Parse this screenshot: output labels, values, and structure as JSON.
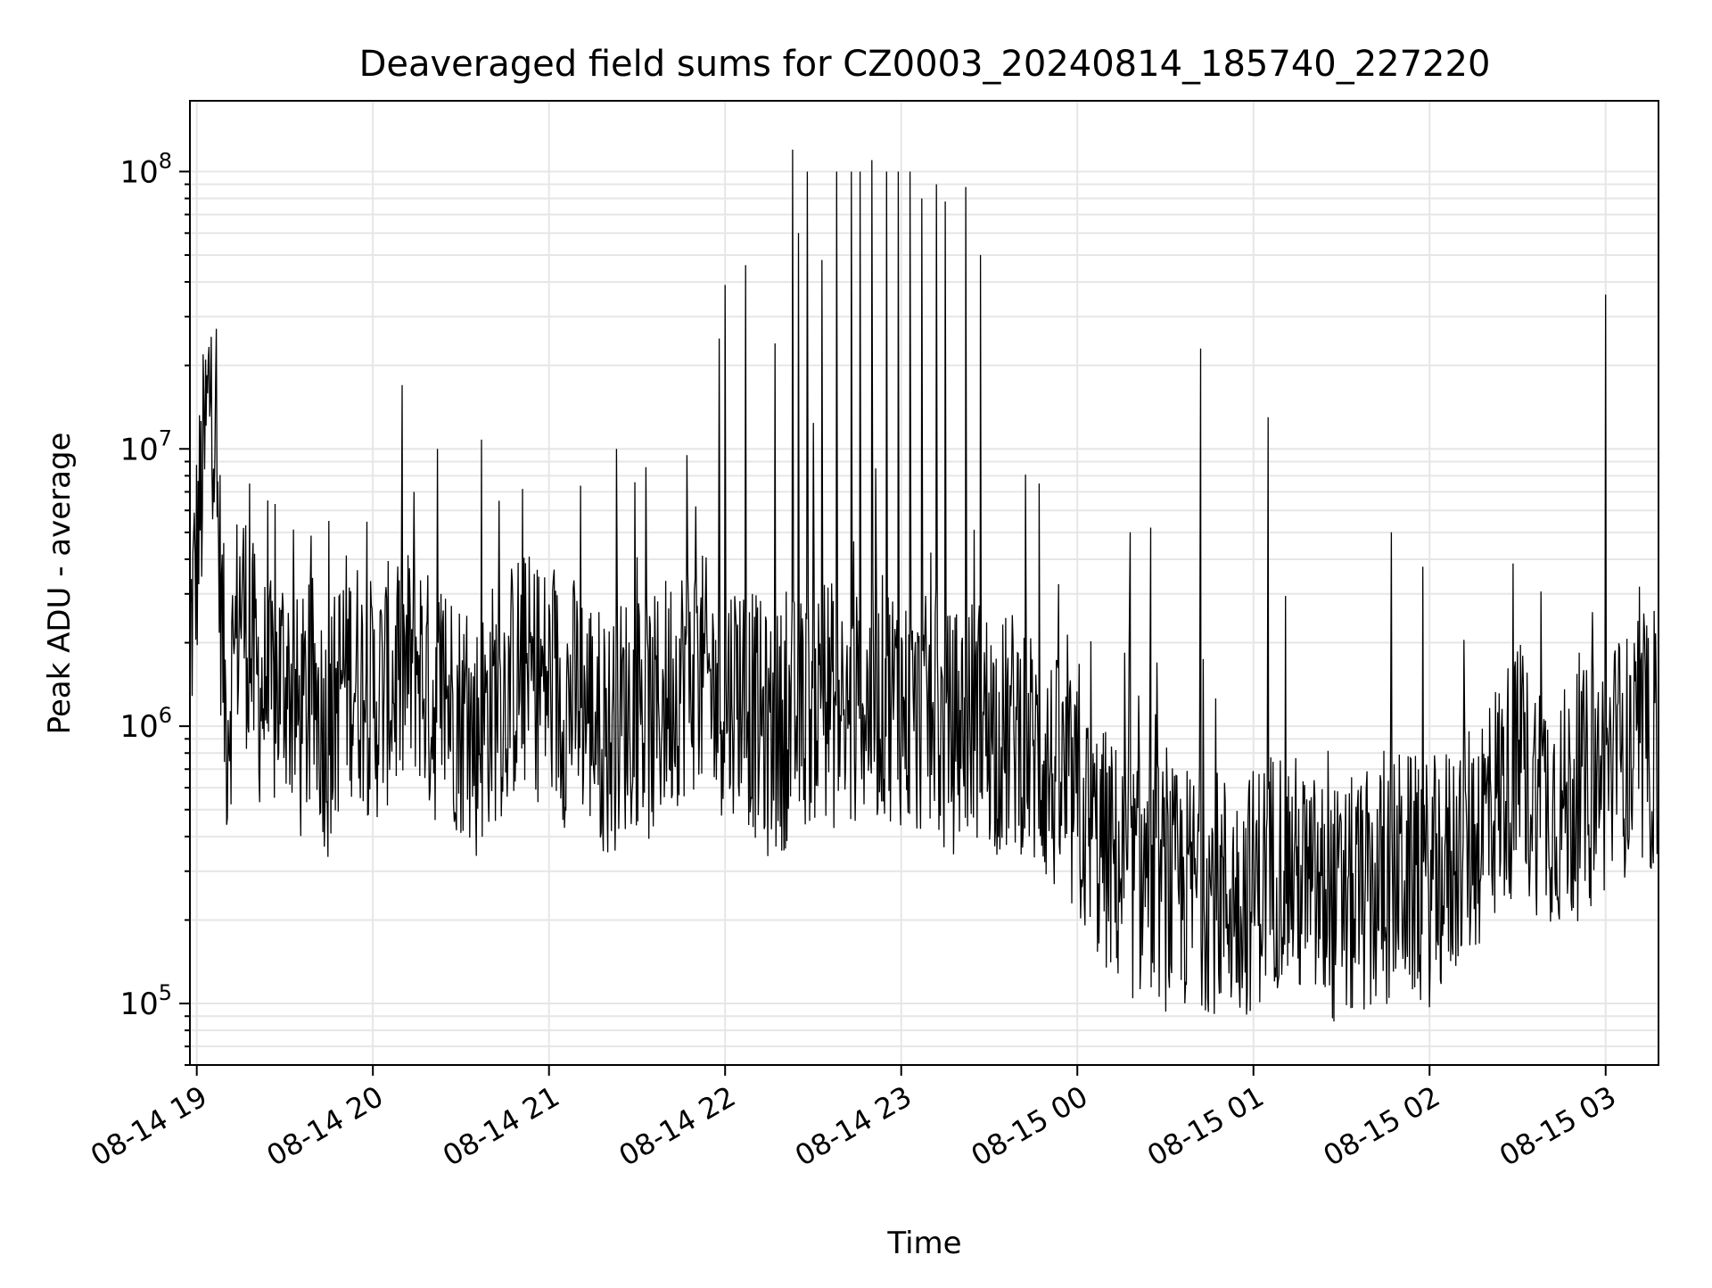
{
  "chart_data": {
    "type": "line",
    "title": "Deaveraged field sums for CZ0003_20240814_185740_227220",
    "xlabel": "Time",
    "ylabel": "Peak ADU - average",
    "yscale": "log",
    "ylim": [
      60000,
      180000000
    ],
    "xlim": [
      "2024-08-14 18:57:40",
      "2024-08-15 03:18:00"
    ],
    "x_ticks": [
      {
        "value": "2024-08-14 19:00",
        "label": "08-14 19"
      },
      {
        "value": "2024-08-14 20:00",
        "label": "08-14 20"
      },
      {
        "value": "2024-08-14 21:00",
        "label": "08-14 21"
      },
      {
        "value": "2024-08-14 22:00",
        "label": "08-14 22"
      },
      {
        "value": "2024-08-14 23:00",
        "label": "08-14 23"
      },
      {
        "value": "2024-08-15 00:00",
        "label": "08-15 00"
      },
      {
        "value": "2024-08-15 01:00",
        "label": "08-15 01"
      },
      {
        "value": "2024-08-15 02:00",
        "label": "08-15 02"
      },
      {
        "value": "2024-08-15 03:00",
        "label": "08-15 03"
      }
    ],
    "y_ticks": [
      {
        "value": 100000,
        "base": "10",
        "exp": "5"
      },
      {
        "value": 1000000,
        "base": "10",
        "exp": "6"
      },
      {
        "value": 10000000,
        "base": "10",
        "exp": "7"
      },
      {
        "value": 100000000,
        "base": "10",
        "exp": "8"
      }
    ],
    "grid": true,
    "line_color": "#000000",
    "grid_color": "#e6e6e6",
    "series": [
      {
        "x": [
          "2024-08-14 18:57:40",
          "2024-08-14 19:05",
          "2024-08-14 19:10",
          "2024-08-14 19:15",
          "2024-08-14 19:20",
          "2024-08-14 19:25",
          "2024-08-14 19:30",
          "2024-08-14 19:35",
          "2024-08-14 19:40",
          "2024-08-14 19:45",
          "2024-08-14 19:50",
          "2024-08-14 19:55",
          "2024-08-14 20:00",
          "2024-08-14 20:05",
          "2024-08-14 20:10",
          "2024-08-14 20:15",
          "2024-08-14 20:20",
          "2024-08-14 20:25",
          "2024-08-14 20:30",
          "2024-08-14 20:35",
          "2024-08-14 20:40",
          "2024-08-14 20:45",
          "2024-08-14 20:50",
          "2024-08-14 20:55",
          "2024-08-14 21:00",
          "2024-08-14 21:05",
          "2024-08-14 21:10",
          "2024-08-14 21:15",
          "2024-08-14 21:20",
          "2024-08-14 21:25",
          "2024-08-14 21:30",
          "2024-08-14 21:35",
          "2024-08-14 21:40",
          "2024-08-14 21:45",
          "2024-08-14 21:50",
          "2024-08-14 21:55",
          "2024-08-14 22:00",
          "2024-08-14 22:05",
          "2024-08-14 22:10",
          "2024-08-14 22:15",
          "2024-08-14 22:20",
          "2024-08-14 22:25",
          "2024-08-14 22:30",
          "2024-08-14 22:35",
          "2024-08-14 22:40",
          "2024-08-14 22:45",
          "2024-08-14 22:50",
          "2024-08-14 22:55",
          "2024-08-14 23:00",
          "2024-08-14 23:05",
          "2024-08-14 23:10",
          "2024-08-14 23:15",
          "2024-08-14 23:20",
          "2024-08-14 23:25",
          "2024-08-14 23:30",
          "2024-08-14 23:35",
          "2024-08-14 23:40",
          "2024-08-14 23:45",
          "2024-08-14 23:50",
          "2024-08-14 23:55",
          "2024-08-15 00:00",
          "2024-08-15 00:05",
          "2024-08-15 00:10",
          "2024-08-15 00:15",
          "2024-08-15 00:20",
          "2024-08-15 00:25",
          "2024-08-15 00:30",
          "2024-08-15 00:35",
          "2024-08-15 00:40",
          "2024-08-15 00:45",
          "2024-08-15 00:50",
          "2024-08-15 00:55",
          "2024-08-15 01:00",
          "2024-08-15 01:05",
          "2024-08-15 01:10",
          "2024-08-15 01:15",
          "2024-08-15 01:20",
          "2024-08-15 01:25",
          "2024-08-15 01:30",
          "2024-08-15 01:35",
          "2024-08-15 01:40",
          "2024-08-15 01:45",
          "2024-08-15 01:50",
          "2024-08-15 01:55",
          "2024-08-15 02:00",
          "2024-08-15 02:05",
          "2024-08-15 02:10",
          "2024-08-15 02:15",
          "2024-08-15 02:20",
          "2024-08-15 02:25",
          "2024-08-15 02:30",
          "2024-08-15 02:35",
          "2024-08-15 02:40",
          "2024-08-15 02:45",
          "2024-08-15 02:50",
          "2024-08-15 02:55",
          "2024-08-15 03:00",
          "2024-08-15 03:05",
          "2024-08-15 03:10",
          "2024-08-15 03:15",
          "2024-08-15 03:18"
        ],
        "y": [
          2000000,
          20000000,
          1000000,
          3000000,
          1500000,
          1200000,
          1600000,
          1000000,
          1300000,
          900000,
          1600000,
          1500000,
          1200000,
          1400000,
          1500000,
          1800000,
          1200000,
          1300000,
          1100000,
          900000,
          1200000,
          1300000,
          1600000,
          1500000,
          1400000,
          1200000,
          1300000,
          1100000,
          900000,
          1100000,
          1200000,
          1000000,
          1300000,
          1500000,
          1600000,
          1400000,
          1300000,
          1400000,
          1100000,
          900000,
          1000000,
          1100000,
          1200000,
          1300000,
          1000000,
          1100000,
          1200000,
          1300000,
          1200000,
          1000000,
          1100000,
          900000,
          1000000,
          1100000,
          1000000,
          900000,
          1000000,
          800000,
          700000,
          600000,
          500000,
          400000,
          350000,
          300000,
          280000,
          300000,
          260000,
          250000,
          270000,
          260000,
          250000,
          240000,
          260000,
          300000,
          330000,
          280000,
          250000,
          230000,
          220000,
          240000,
          250000,
          260000,
          300000,
          280000,
          270000,
          300000,
          350000,
          400000,
          500000,
          600000,
          700000,
          600000,
          550000,
          500000,
          550000,
          600000,
          700000,
          800000,
          750000,
          800000,
          850000
        ],
        "peaks_x": [
          "2024-08-14 19:03",
          "2024-08-14 19:18",
          "2024-08-14 19:45",
          "2024-08-14 20:14",
          "2024-08-14 20:22",
          "2024-08-14 20:37",
          "2024-08-14 20:43",
          "2024-08-14 21:23",
          "2024-08-14 21:47",
          "2024-08-14 21:50",
          "2024-08-14 21:58",
          "2024-08-14 22:00",
          "2024-08-14 22:07",
          "2024-08-14 22:17",
          "2024-08-14 22:23",
          "2024-08-14 22:25",
          "2024-08-14 22:28",
          "2024-08-14 22:33",
          "2024-08-14 22:38",
          "2024-08-14 22:43",
          "2024-08-14 22:46",
          "2024-08-14 22:50",
          "2024-08-14 22:55",
          "2024-08-14 22:59",
          "2024-08-14 23:03",
          "2024-08-14 23:07",
          "2024-08-14 23:12",
          "2024-08-14 23:15",
          "2024-08-14 23:22",
          "2024-08-14 23:27",
          "2024-08-14 23:47",
          "2024-08-15 00:18",
          "2024-08-15 00:25",
          "2024-08-15 00:42",
          "2024-08-15 01:05",
          "2024-08-15 01:47",
          "2024-08-15 03:00"
        ],
        "peaks_y": [
          21000000,
          7500000,
          5500000,
          7000000,
          10000000,
          10800000,
          6500000,
          10000000,
          9500000,
          6200000,
          25000000,
          39000000,
          46000000,
          24000000,
          120000000,
          60000000,
          100000000,
          48000000,
          100000000,
          100000000,
          100000000,
          110000000,
          100000000,
          100000000,
          100000000,
          80000000,
          90000000,
          78000000,
          88000000,
          50000000,
          7500000,
          5000000,
          5200000,
          23000000,
          13000000,
          5000000,
          36000000
        ]
      }
    ]
  }
}
